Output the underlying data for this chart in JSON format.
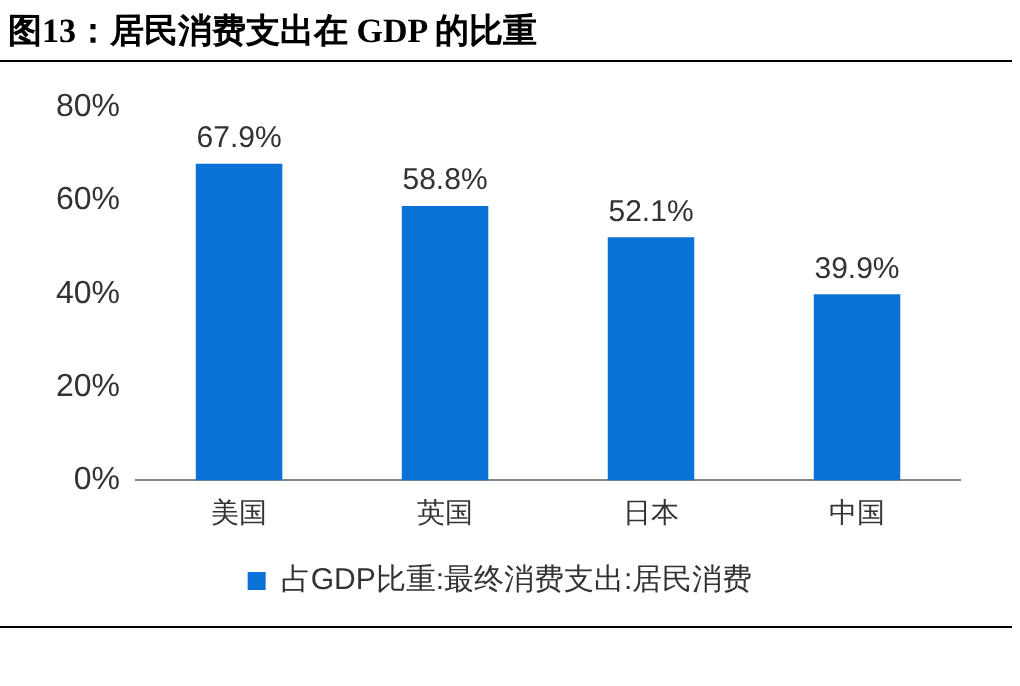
{
  "chart_data": {
    "type": "bar",
    "title": "图13：居民消费支出在 GDP 的比重",
    "categories": [
      "美国",
      "英国",
      "日本",
      "中国"
    ],
    "series": [
      {
        "name": "占GDP比重:最终消费支出:居民消费",
        "color": "#0a72d6",
        "values": [
          67.9,
          58.8,
          52.1,
          39.9
        ],
        "value_labels": [
          "67.9%",
          "58.8%",
          "52.1%",
          "39.9%"
        ]
      }
    ],
    "ylim": [
      0,
      80
    ],
    "yticks": [
      {
        "value": 0,
        "label": "0%"
      },
      {
        "value": 20,
        "label": "20%"
      },
      {
        "value": 40,
        "label": "40%"
      },
      {
        "value": 60,
        "label": "60%"
      },
      {
        "value": 80,
        "label": "80%"
      }
    ],
    "grid": false,
    "legend": "bottom"
  }
}
